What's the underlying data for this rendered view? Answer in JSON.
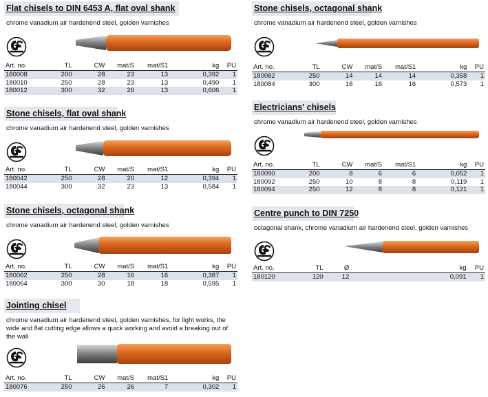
{
  "headers": {
    "art": "Art. no.",
    "tl": "TL",
    "cw": "CW",
    "ms": "mat/S",
    "ms1": "mat/S1",
    "kg": "kg",
    "pu": "PU",
    "dia": "Ø"
  },
  "logo": "GS",
  "colors": {
    "title_bg": "#e4e8ec",
    "row_shade": "#dce2e7",
    "handle": "#d9661e"
  },
  "s1": {
    "title": "Flat chisels to DIN 6453 A, flat oval shank",
    "desc": "chrome vanadium air hardenend steel, golden varnishes",
    "rows": [
      [
        "180008",
        "200",
        "28",
        "23",
        "13",
        "0,392",
        "1"
      ],
      [
        "180010",
        "250",
        "28",
        "23",
        "13",
        "0,490",
        "1"
      ],
      [
        "180012",
        "300",
        "32",
        "26",
        "13",
        "0,606",
        "1"
      ]
    ]
  },
  "s2": {
    "title": "Stone chisels, flat oval shank",
    "desc": "chrome vanadium air hardenend steel, golden varnishes",
    "rows": [
      [
        "180042",
        "250",
        "28",
        "20",
        "12",
        "0,394",
        "1"
      ],
      [
        "180044",
        "300",
        "32",
        "23",
        "13",
        "0,584",
        "1"
      ]
    ]
  },
  "s3": {
    "title": "Stone chisels, octagonal shank",
    "desc": "chrome vanadium air hardenend steel, golden varnishes",
    "rows": [
      [
        "180062",
        "250",
        "28",
        "16",
        "16",
        "0,387",
        "1"
      ],
      [
        "180064",
        "300",
        "30",
        "18",
        "18",
        "0,595",
        "1"
      ]
    ]
  },
  "s4": {
    "title": "Jointing chisel",
    "desc": "chrome vanadium air hardenend steel, golden varnishes, for light works, the wide and flat cutting edge allows a quick working and avoid a breaking out of the wall",
    "rows": [
      [
        "180076",
        "250",
        "26",
        "26",
        "7",
        "0,302",
        "1"
      ]
    ]
  },
  "s5": {
    "title": "Stone chisels, octagonal shank",
    "desc": "chrome vanadium air hardenend steel, golden varnishes",
    "rows": [
      [
        "180082",
        "250",
        "14",
        "14",
        "14",
        "0,358",
        "1"
      ],
      [
        "180084",
        "300",
        "16",
        "16",
        "16",
        "0,573",
        "1"
      ]
    ]
  },
  "s6": {
    "title": "Electricians' chisels",
    "desc": "chrome vanadium air hardenend steel, golden varnishes",
    "rows": [
      [
        "180090",
        "200",
        "8",
        "6",
        "6",
        "0,052",
        "1"
      ],
      [
        "180092",
        "250",
        "10",
        "8",
        "8",
        "0,119",
        "1"
      ],
      [
        "180094",
        "250",
        "12",
        "8",
        "8",
        "0,121",
        "1"
      ]
    ]
  },
  "s7": {
    "title": "Centre punch to DIN 7250",
    "desc": "octagonal shank, chrome vanadium air hardenend steel, golden varnishes",
    "rows": [
      [
        "180120",
        "120",
        "12",
        "0,091",
        "1"
      ]
    ]
  }
}
